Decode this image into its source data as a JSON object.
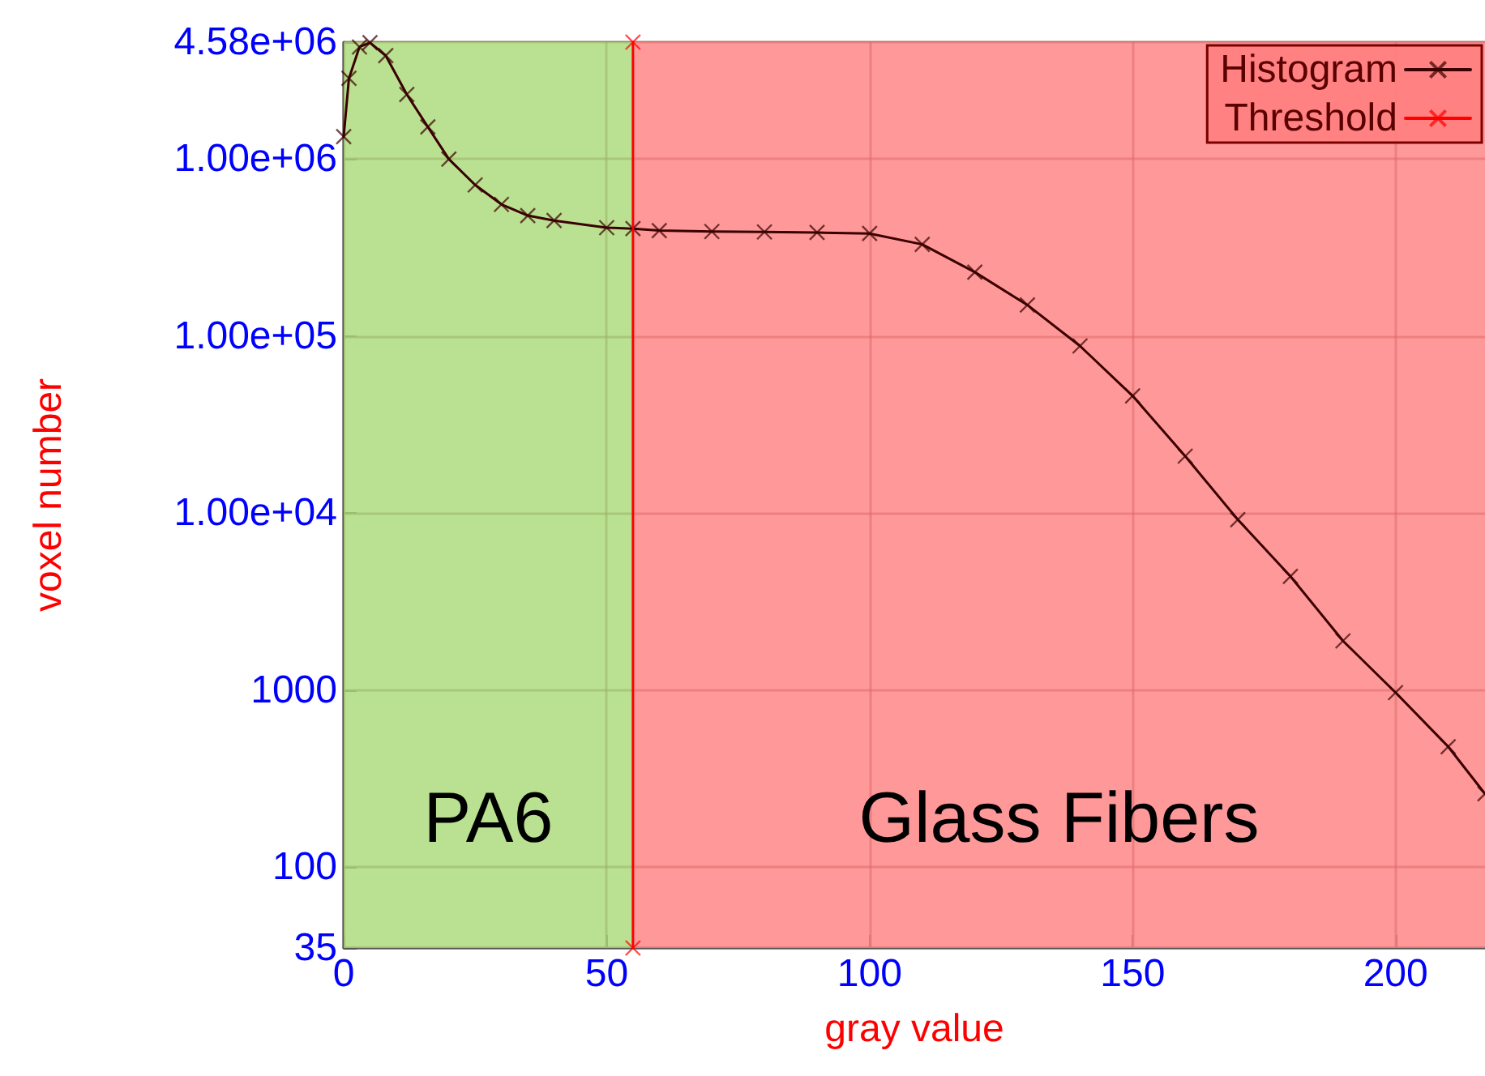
{
  "chart_data": {
    "type": "line",
    "xlabel": "gray value",
    "ylabel": "voxel number",
    "xlim": [
      0,
      217
    ],
    "xticks": [
      0,
      50,
      100,
      150,
      200
    ],
    "ylim": [
      35,
      4580000
    ],
    "yticks": [
      35,
      100,
      1000,
      {
        "value": 10000,
        "label": "1.00e+04"
      },
      {
        "value": 100000,
        "label": "1.00e+05"
      },
      {
        "value": 1000000,
        "label": "1.00e+06"
      },
      {
        "value": 4580000,
        "label": "4.58e+06"
      }
    ],
    "log": true,
    "grid": true,
    "legend": "top right",
    "marker": "cross",
    "series": [
      {
        "name": "Histogram",
        "color": "#3a0000",
        "x": [
          0,
          1,
          3,
          5,
          8,
          12,
          16,
          20,
          25,
          30,
          35,
          40,
          50,
          55,
          60,
          70,
          80,
          90,
          100,
          110,
          120,
          130,
          140,
          150,
          160,
          170,
          180,
          190,
          200,
          210,
          217
        ],
        "values": [
          1340000,
          2860000,
          4300000,
          4550000,
          3840000,
          2320000,
          1520000,
          1000000,
          715000,
          555000,
          480000,
          450000,
          410000,
          405000,
          395000,
          390000,
          388000,
          385000,
          380000,
          330000,
          230000,
          150000,
          88000,
          46000,
          21000,
          9200,
          4400,
          1900,
          970,
          480,
          260
        ]
      },
      {
        "name": "Threshold",
        "type": "line",
        "color": "#ff0000",
        "x": [
          55,
          55
        ],
        "values": [
          35,
          4580000
        ]
      }
    ],
    "bands": [
      {
        "axis": "x",
        "from": 0,
        "to": 55,
        "label": "PA6",
        "color": "#a9d977"
      },
      {
        "axis": "x",
        "from": 55,
        "to": 217,
        "label": "Glass Fibers",
        "color": "#ff8080"
      }
    ]
  }
}
